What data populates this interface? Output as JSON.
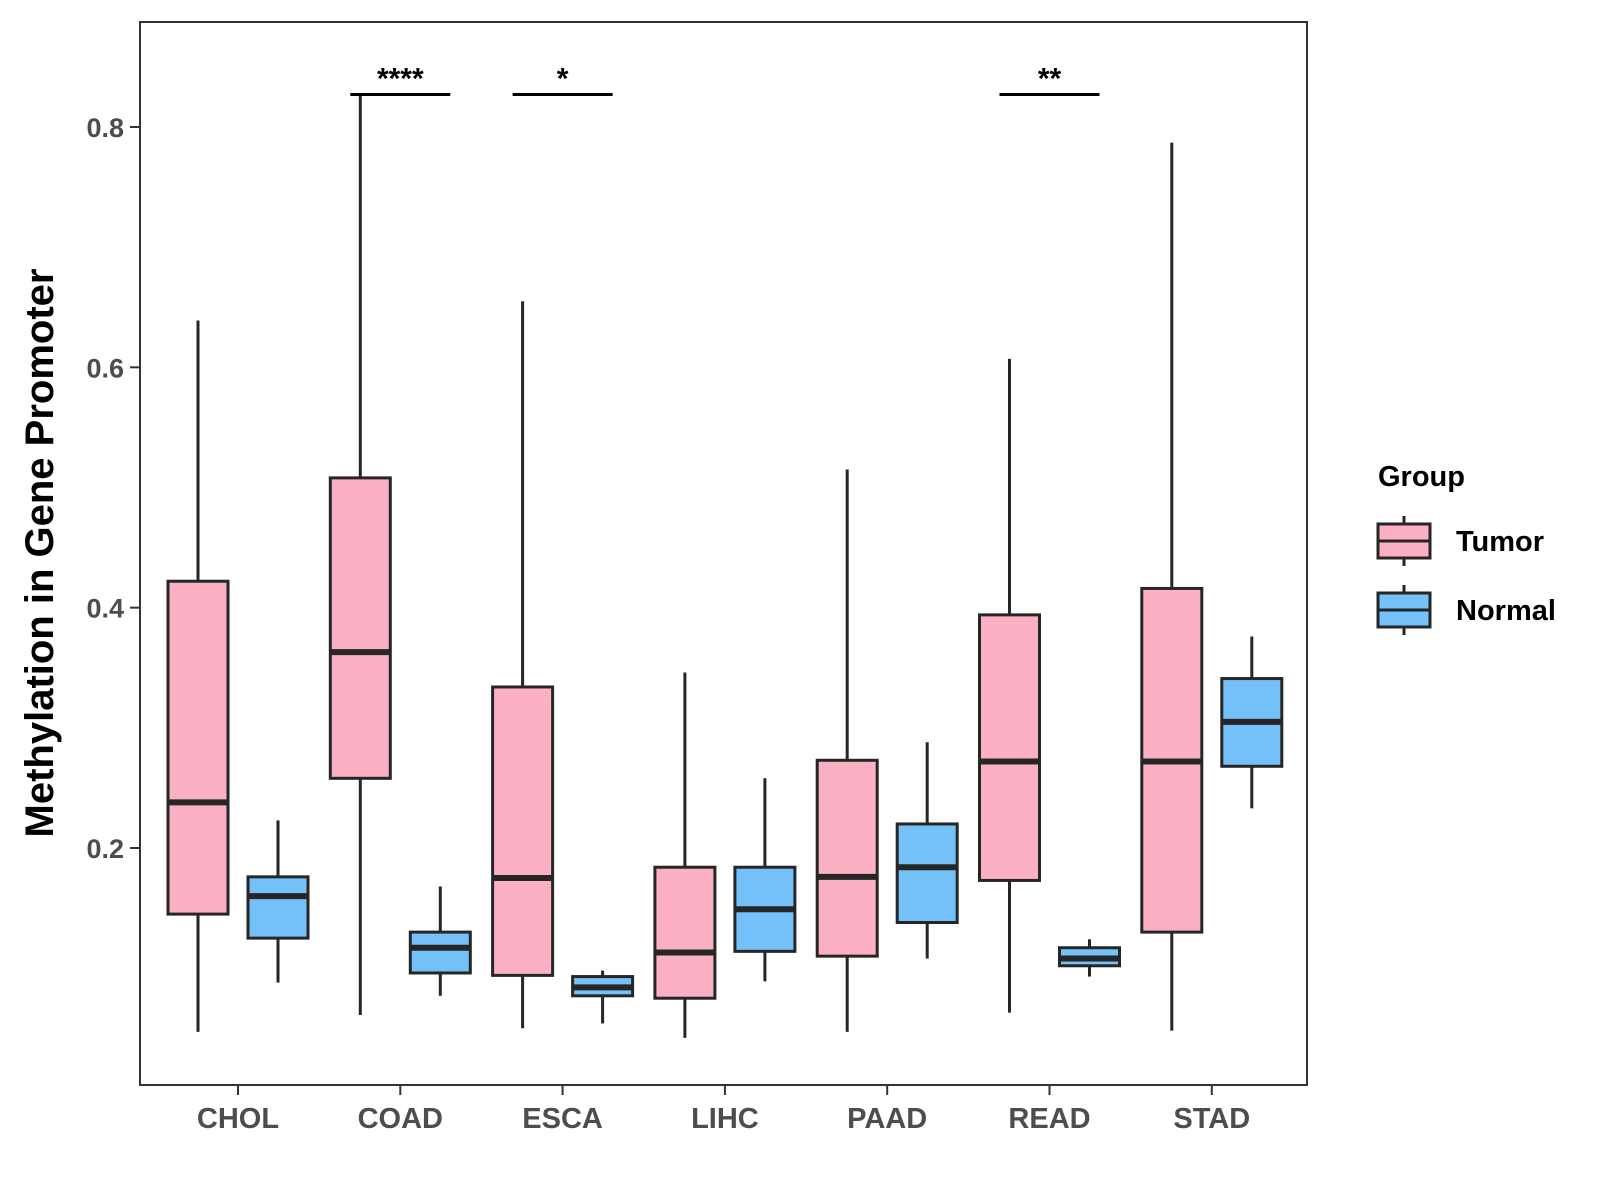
{
  "chart_data": {
    "type": "boxplot",
    "title": "",
    "xlabel": "",
    "ylabel": "Methylation in Gene Promoter",
    "ylim": [
      0.0,
      0.88
    ],
    "yticks": [
      0.2,
      0.4,
      0.6,
      0.8
    ],
    "ytick_labels": [
      "0.2",
      "0.4",
      "0.6",
      "0.8"
    ],
    "categories": [
      "CHOL",
      "COAD",
      "ESCA",
      "LIHC",
      "PAAD",
      "READ",
      "STAD"
    ],
    "legend": {
      "title": "Group",
      "position": "right",
      "entries": [
        {
          "name": "Tumor",
          "color": "#FBB0C3"
        },
        {
          "name": "Normal",
          "color": "#74C0F8"
        }
      ]
    },
    "series": [
      {
        "name": "Tumor",
        "color": "#FBB0C3",
        "boxes": [
          {
            "category": "CHOL",
            "min": 0.047,
            "q1": 0.145,
            "median": 0.238,
            "q3": 0.422,
            "max": 0.639
          },
          {
            "category": "COAD",
            "min": 0.061,
            "q1": 0.258,
            "median": 0.363,
            "q3": 0.508,
            "max": 0.826
          },
          {
            "category": "ESCA",
            "min": 0.05,
            "q1": 0.094,
            "median": 0.175,
            "q3": 0.334,
            "max": 0.655
          },
          {
            "category": "LIHC",
            "min": 0.042,
            "q1": 0.075,
            "median": 0.113,
            "q3": 0.184,
            "max": 0.346
          },
          {
            "category": "PAAD",
            "min": 0.047,
            "q1": 0.11,
            "median": 0.176,
            "q3": 0.273,
            "max": 0.515
          },
          {
            "category": "READ",
            "min": 0.063,
            "q1": 0.173,
            "median": 0.272,
            "q3": 0.394,
            "max": 0.607
          },
          {
            "category": "STAD",
            "min": 0.048,
            "q1": 0.13,
            "median": 0.272,
            "q3": 0.416,
            "max": 0.787
          }
        ]
      },
      {
        "name": "Normal",
        "color": "#74C0F8",
        "boxes": [
          {
            "category": "CHOL",
            "min": 0.088,
            "q1": 0.125,
            "median": 0.16,
            "q3": 0.176,
            "max": 0.223
          },
          {
            "category": "COAD",
            "min": 0.077,
            "q1": 0.096,
            "median": 0.117,
            "q3": 0.13,
            "max": 0.168
          },
          {
            "category": "ESCA",
            "min": 0.054,
            "q1": 0.077,
            "median": 0.084,
            "q3": 0.093,
            "max": 0.098
          },
          {
            "category": "LIHC",
            "min": 0.089,
            "q1": 0.114,
            "median": 0.149,
            "q3": 0.184,
            "max": 0.258
          },
          {
            "category": "PAAD",
            "min": 0.108,
            "q1": 0.138,
            "median": 0.184,
            "q3": 0.22,
            "max": 0.288
          },
          {
            "category": "READ",
            "min": 0.093,
            "q1": 0.102,
            "median": 0.108,
            "q3": 0.117,
            "max": 0.124
          },
          {
            "category": "STAD",
            "min": 0.233,
            "q1": 0.268,
            "median": 0.305,
            "q3": 0.341,
            "max": 0.376
          }
        ]
      }
    ],
    "annotations": [
      {
        "category": "COAD",
        "label": "****",
        "y": 0.827
      },
      {
        "category": "ESCA",
        "label": "*",
        "y": 0.827
      },
      {
        "category": "READ",
        "label": "**",
        "y": 0.827
      }
    ],
    "grid": false
  }
}
